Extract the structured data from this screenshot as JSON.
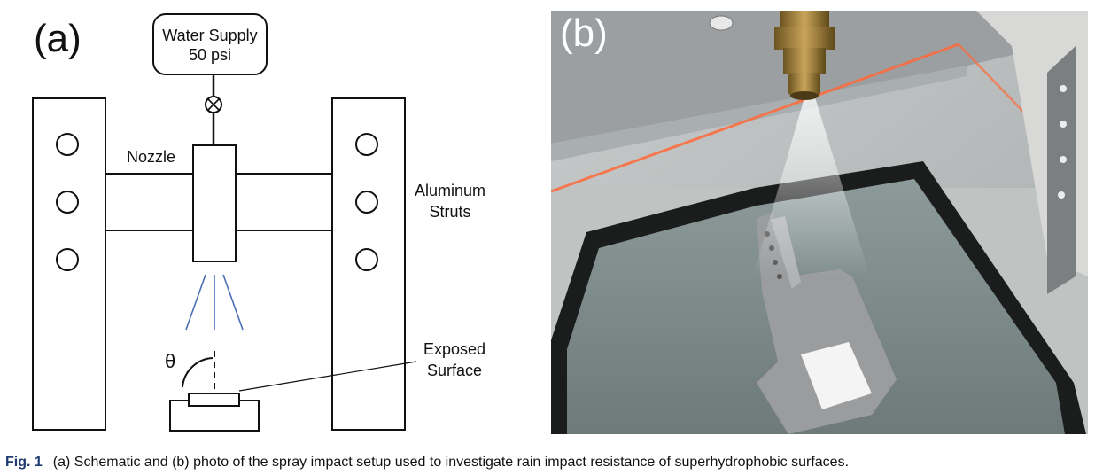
{
  "panel_a": {
    "letter": "(a)",
    "water_supply_line1": "Water Supply",
    "water_supply_line2": "50 psi",
    "nozzle_label": "Nozzle",
    "struts_line1": "Aluminum",
    "struts_line2": "Struts",
    "exposed_line1": "Exposed",
    "exposed_line2": "Surface",
    "angle_symbol": "θ"
  },
  "panel_b": {
    "letter": "(b)"
  },
  "caption": {
    "fig_id": "Fig. 1",
    "text": "(a) Schematic and (b) photo of the spray impact setup used to investigate rain impact resistance of superhydrophobic surfaces."
  },
  "colors": {
    "spray_lines": "#4a6fb5",
    "caption_fig_id": "#1f3b70"
  }
}
